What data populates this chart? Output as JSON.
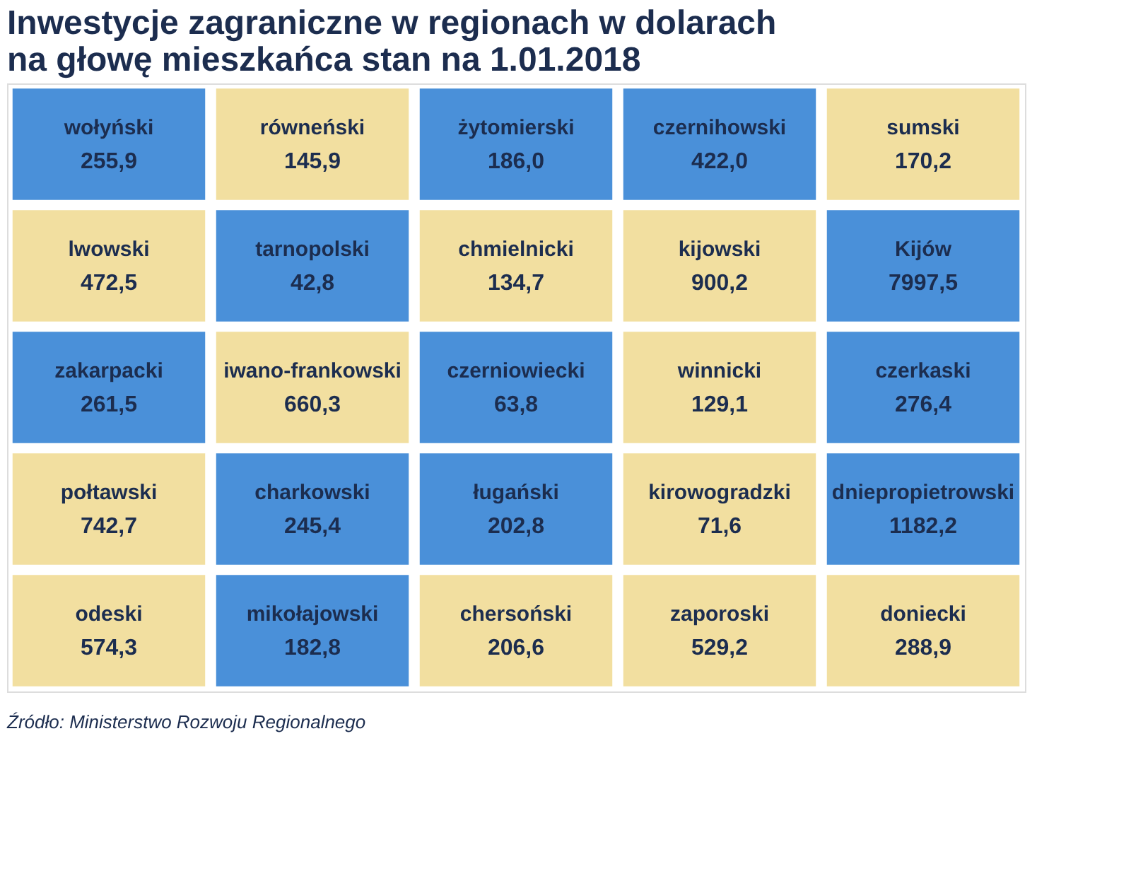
{
  "chart_data": {
    "type": "other",
    "title": "Inwestycje zagraniczne w regionach w dolarach na głowę mieszkańca stan na 1.01.2018",
    "categories": [
      "wołyński",
      "równeński",
      "żytomierski",
      "czernihowski",
      "sumski",
      "lwowski",
      "tarnopolski",
      "chmielnicki",
      "kijowski",
      "Kijów",
      "zakarpacki",
      "iwano-frankowski",
      "czerniowiecki",
      "winnicki",
      "czerkaski",
      "połtawski",
      "charkowski",
      "ługański",
      "kirowogradzki",
      "dniepropietrowski",
      "odeski",
      "mikołajowski",
      "chersoński",
      "zaporoski",
      "doniecki"
    ],
    "values": [
      255.9,
      145.9,
      186.0,
      422.0,
      170.2,
      472.5,
      42.8,
      134.7,
      900.2,
      7997.5,
      261.5,
      660.3,
      63.8,
      129.1,
      276.4,
      742.7,
      245.4,
      202.8,
      71.6,
      1182.2,
      574.3,
      182.8,
      206.6,
      529.2,
      288.9
    ],
    "value_labels": [
      "255,9",
      "145,9",
      "186,0",
      "422,0",
      "170,2",
      "472,5",
      "42,8",
      "134,7",
      "900,2",
      "7997,5",
      "261,5",
      "660,3",
      "63,8",
      "129,1",
      "276,4",
      "742,7",
      "245,4",
      "202,8",
      "71,6",
      "1182,2",
      "574,3",
      "182,8",
      "206,6",
      "529,2",
      "288,9"
    ],
    "colors": [
      "#4a90d9",
      "#f2dfa0",
      "#4a90d9",
      "#4a90d9",
      "#f2dfa0",
      "#f2dfa0",
      "#4a90d9",
      "#f2dfa0",
      "#f2dfa0",
      "#4a90d9",
      "#4a90d9",
      "#f2dfa0",
      "#4a90d9",
      "#f2dfa0",
      "#4a90d9",
      "#f2dfa0",
      "#4a90d9",
      "#4a90d9",
      "#f2dfa0",
      "#4a90d9",
      "#f2dfa0",
      "#4a90d9",
      "#f2dfa0",
      "#f2dfa0",
      "#f2dfa0"
    ],
    "annotations": [
      "Źródło: Ministerstwo Rozwoju Regionalnego"
    ]
  }
}
